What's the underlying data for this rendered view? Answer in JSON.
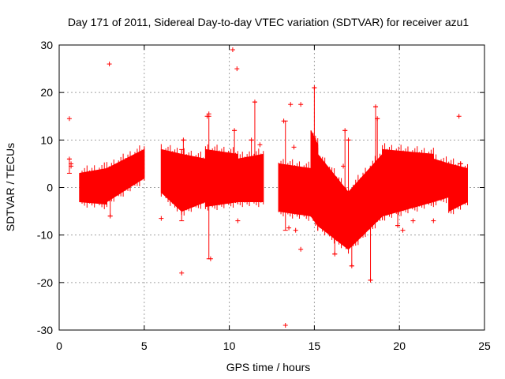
{
  "chart_data": {
    "type": "scatter",
    "title": "Day 171 of 2011, Sidereal Day-to-day VTEC variation (SDTVAR) for receiver azu1",
    "xlabel": "GPS time / hours",
    "ylabel": "SDTVAR / TECUs",
    "xlim": [
      0,
      25
    ],
    "ylim": [
      -30,
      30
    ],
    "xticks": [
      0,
      5,
      10,
      15,
      20,
      25
    ],
    "yticks": [
      -30,
      -20,
      -10,
      0,
      10,
      20,
      30
    ],
    "grid": true,
    "marker": "+",
    "color": "#ff0000",
    "series": [
      {
        "name": "azu1",
        "bands": [
          {
            "x0": 1.2,
            "x1": 2.8,
            "lo0": -3,
            "hi0": 3,
            "lo1": -3.5,
            "hi1": 4
          },
          {
            "x0": 2.8,
            "x1": 5.0,
            "lo0": -3,
            "hi0": 4,
            "lo1": 2,
            "hi1": 8
          },
          {
            "x0": 6.0,
            "x1": 7.2,
            "lo0": -1,
            "hi0": 8,
            "lo1": -5,
            "hi1": 7
          },
          {
            "x0": 7.2,
            "x1": 8.6,
            "lo0": -5,
            "hi0": 7,
            "lo1": -3,
            "hi1": 6
          },
          {
            "x0": 8.6,
            "x1": 10.5,
            "lo0": -4,
            "hi0": 8,
            "lo1": -3,
            "hi1": 7
          },
          {
            "x0": 10.5,
            "x1": 12.0,
            "lo0": -3,
            "hi0": 6,
            "lo1": -3,
            "hi1": 7
          },
          {
            "x0": 12.9,
            "x1": 14.8,
            "lo0": -5,
            "hi0": 5,
            "lo1": -6,
            "hi1": 4
          },
          {
            "x0": 14.8,
            "x1": 15.2,
            "lo0": -6,
            "hi0": 12,
            "lo1": -8,
            "hi1": 9
          },
          {
            "x0": 15.2,
            "x1": 17.0,
            "lo0": -8,
            "hi0": 7,
            "lo1": -13,
            "hi1": -1
          },
          {
            "x0": 17.0,
            "x1": 19.0,
            "lo0": -13,
            "hi0": -1,
            "lo1": -6,
            "hi1": 7
          },
          {
            "x0": 19.0,
            "x1": 22.0,
            "lo0": -6,
            "hi0": 8,
            "lo1": -3,
            "hi1": 7
          },
          {
            "x0": 22.0,
            "x1": 22.9,
            "lo0": -3,
            "hi0": 6,
            "lo1": -2,
            "hi1": 5
          },
          {
            "x0": 22.9,
            "x1": 24.0,
            "lo0": -5,
            "hi0": 5,
            "lo1": -3,
            "hi1": 4
          }
        ],
        "outliers": [
          {
            "x": 0.6,
            "y": 14.5
          },
          {
            "x": 0.6,
            "y": 6
          },
          {
            "x": 0.7,
            "y": 5
          },
          {
            "x": 0.7,
            "y": 4.5
          },
          {
            "x": 2.95,
            "y": 26
          },
          {
            "x": 3.0,
            "y": -6
          },
          {
            "x": 6.0,
            "y": -6.5
          },
          {
            "x": 7.2,
            "y": -18
          },
          {
            "x": 7.3,
            "y": 10
          },
          {
            "x": 8.8,
            "y": 15.5
          },
          {
            "x": 8.7,
            "y": 15
          },
          {
            "x": 8.9,
            "y": -15
          },
          {
            "x": 10.2,
            "y": 29
          },
          {
            "x": 10.45,
            "y": 25
          },
          {
            "x": 10.3,
            "y": 12
          },
          {
            "x": 10.5,
            "y": -7
          },
          {
            "x": 11.5,
            "y": 18
          },
          {
            "x": 11.3,
            "y": 10
          },
          {
            "x": 11.8,
            "y": 9
          },
          {
            "x": 13.3,
            "y": -29
          },
          {
            "x": 13.2,
            "y": 14
          },
          {
            "x": 13.6,
            "y": 17.5
          },
          {
            "x": 13.8,
            "y": 8.5
          },
          {
            "x": 14.2,
            "y": 17.5
          },
          {
            "x": 14.2,
            "y": -13
          },
          {
            "x": 13.9,
            "y": -9
          },
          {
            "x": 13.5,
            "y": -8.5
          },
          {
            "x": 15.0,
            "y": 21
          },
          {
            "x": 16.2,
            "y": -14
          },
          {
            "x": 16.7,
            "y": 4.5
          },
          {
            "x": 16.8,
            "y": 12
          },
          {
            "x": 17.2,
            "y": -16.5
          },
          {
            "x": 17.0,
            "y": 10
          },
          {
            "x": 18.3,
            "y": -19.5
          },
          {
            "x": 18.6,
            "y": 17
          },
          {
            "x": 18.7,
            "y": 14.5
          },
          {
            "x": 19.9,
            "y": -8
          },
          {
            "x": 20.2,
            "y": -9
          },
          {
            "x": 20.8,
            "y": -7
          },
          {
            "x": 22.0,
            "y": -7
          },
          {
            "x": 23.5,
            "y": 15
          },
          {
            "x": 23.6,
            "y": 5
          }
        ],
        "spikes": [
          {
            "x": 0.6,
            "lo": 3,
            "hi": 6
          },
          {
            "x": 3.0,
            "lo": -6,
            "hi": 2
          },
          {
            "x": 7.2,
            "lo": -7,
            "hi": 8
          },
          {
            "x": 7.3,
            "lo": 3,
            "hi": 10
          },
          {
            "x": 8.8,
            "lo": -15,
            "hi": 15
          },
          {
            "x": 10.3,
            "lo": 6,
            "hi": 12
          },
          {
            "x": 11.5,
            "lo": 3,
            "hi": 18
          },
          {
            "x": 11.3,
            "lo": 0,
            "hi": 10
          },
          {
            "x": 13.3,
            "lo": -9,
            "hi": 14
          },
          {
            "x": 15.0,
            "lo": 0,
            "hi": 21
          },
          {
            "x": 16.2,
            "lo": -14,
            "hi": -4
          },
          {
            "x": 16.8,
            "lo": -8,
            "hi": 12
          },
          {
            "x": 17.2,
            "lo": -16.5,
            "hi": -8
          },
          {
            "x": 17.0,
            "lo": -5,
            "hi": 10
          },
          {
            "x": 18.3,
            "lo": -19.5,
            "hi": -4
          },
          {
            "x": 18.6,
            "lo": 4,
            "hi": 17
          },
          {
            "x": 18.7,
            "lo": 2,
            "hi": 14.5
          },
          {
            "x": 19.9,
            "lo": -8,
            "hi": -3
          },
          {
            "x": 23.6,
            "lo": 1,
            "hi": 5
          }
        ]
      }
    ]
  }
}
